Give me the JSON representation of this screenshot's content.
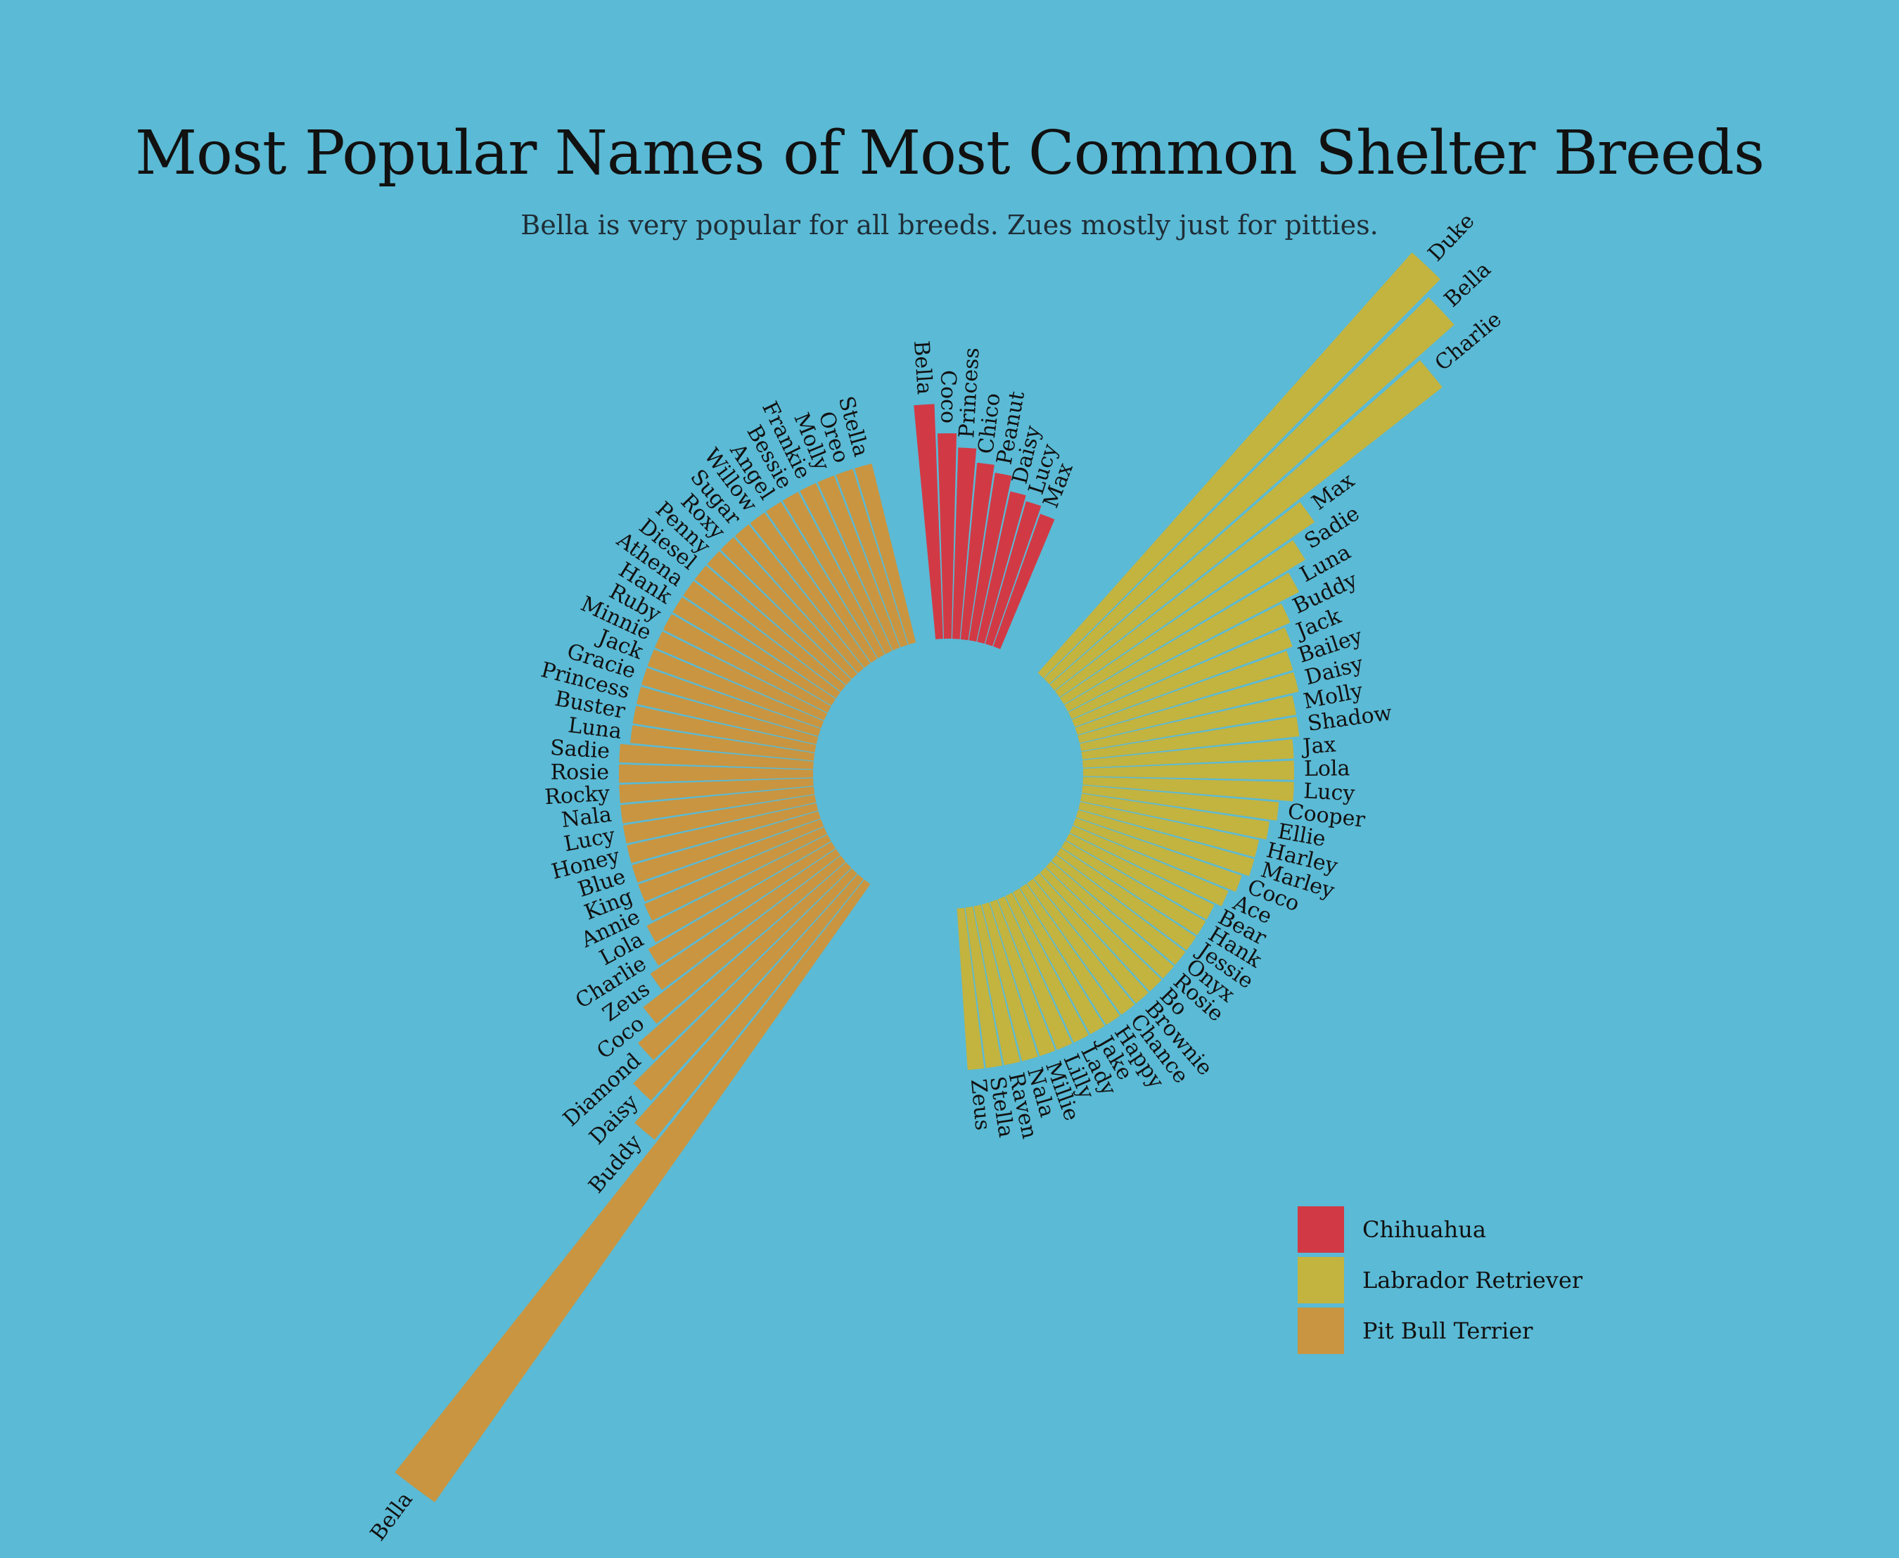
{
  "chart_data": {
    "type": "radial-bar",
    "title": "Most Popular Names of Most Common Shelter Breeds",
    "subtitle": "Bella is very popular for all breeds. Zues mostly just for pitties.",
    "series": [
      {
        "name": "Chihuahua",
        "color": "#d13a45",
        "categories": [
          "Bella",
          "Coco",
          "Princess",
          "Chico",
          "Peanut",
          "Daisy",
          "Lucy",
          "Max"
        ],
        "values": [
          334,
          292,
          272,
          252,
          241,
          219,
          211,
          200
        ]
      },
      {
        "name": "Labrador Retriever",
        "color": "#c3b33f",
        "categories": [
          "Duke",
          "Bella",
          "Charlie",
          "Max",
          "Sadie",
          "Luna",
          "Buddy",
          "Jack",
          "Bailey",
          "Daisy",
          "Molly",
          "Shadow",
          "Jax",
          "Lola",
          "Lucy",
          "Cooper",
          "Ellie",
          "Harley",
          "Marley",
          "Coco",
          "Ace",
          "Bear",
          "Hank",
          "Jessie",
          "Onyx",
          "Rosie",
          "Bo",
          "Brownie",
          "Chance",
          "Happy",
          "Jake",
          "Lady",
          "Lilly",
          "Millie",
          "Nala",
          "Raven",
          "Stella",
          "Zeus"
        ],
        "values": [
          800,
          770,
          700,
          440,
          400,
          370,
          340,
          330,
          320,
          320,
          310,
          310,
          300,
          300,
          300,
          280,
          270,
          260,
          260,
          250,
          240,
          230,
          230,
          230,
          230,
          230,
          230,
          230,
          230,
          230,
          230,
          230,
          230,
          230,
          230,
          230,
          230,
          230
        ]
      },
      {
        "name": "Pit Bull Terrier",
        "color": "#c99540",
        "categories": [
          "Bella",
          "Buddy",
          "Daisy",
          "Diamond",
          "Coco",
          "Zeus",
          "Charlie",
          "Lola",
          "Annie",
          "King",
          "Blue",
          "Honey",
          "Lucy",
          "Nala",
          "Rocky",
          "Rosie",
          "Sadie",
          "Luna",
          "Buster",
          "Princess",
          "Gracie",
          "Jack",
          "Minnie",
          "Ruby",
          "Hank",
          "Athena",
          "Diesel",
          "Penny",
          "Roxy",
          "Sugar",
          "Willow",
          "Angel",
          "Bessie",
          "Frankie",
          "Molly",
          "Oreo",
          "Stella"
        ],
        "values": [
          1075,
          475,
          436,
          392,
          354,
          318,
          302,
          288,
          278,
          276,
          276,
          276,
          276,
          276,
          276,
          276,
          276,
          262,
          262,
          262,
          262,
          262,
          262,
          262,
          262,
          262,
          262,
          262,
          262,
          262,
          262,
          262,
          262,
          262,
          262,
          262,
          262
        ]
      }
    ],
    "legend": {
      "position": "bottom-right",
      "items": [
        "Chihuahua",
        "Labrador Retriever",
        "Pit Bull Terrier"
      ]
    },
    "grid": false
  }
}
